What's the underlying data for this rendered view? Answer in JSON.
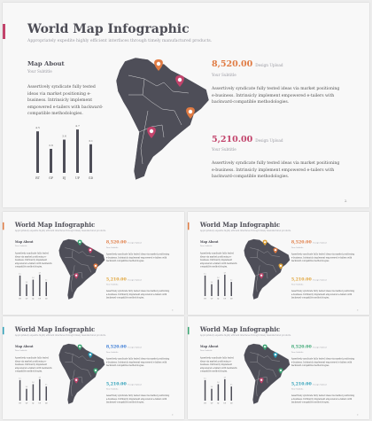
{
  "slide": {
    "title": "World Map Infographic",
    "subtitle": "Appropriately expedite highly efficient interfaces through timely manufactured products.",
    "section_title": "Map About",
    "section_sub": "Your Subtitle",
    "body": "Assertively syndicate fully tested ideas via market positioning e-business. Intrinsicly implement empowered e-tailers with backward-compatible methodologies.",
    "stat1": {
      "value": "8,520.00",
      "unit": "Design Upload",
      "sub": "Your Subtitle"
    },
    "stat2": {
      "value": "5,210.00",
      "unit": "Design Upload",
      "sub": "Your Subtitle"
    },
    "stat_text": "Assertively syndicate fully tested ideas via market positioning e-business. Intrinsicly implement empowered e-tailers with backward-compatible methodologies.",
    "page_number": "2"
  },
  "chart_data": {
    "type": "bar",
    "categories": [
      "RT",
      "GP",
      "EJ",
      "UP",
      "GD"
    ],
    "values": [
      4.5,
      2.6,
      3.6,
      4.7,
      3.1
    ],
    "labels": [
      "4.5",
      "2.6",
      "3.6",
      "4.7",
      "3.1"
    ],
    "ylim": [
      0,
      5
    ],
    "bar_color": "#4e4e58"
  },
  "themes": [
    {
      "accent": "#c2436b",
      "stat1": "#e07b43",
      "stat2": "#c2436b",
      "pins": [
        "#e07b43",
        "#c2436b",
        "#e07b43",
        "#c2436b"
      ]
    },
    {
      "accent": "#e07b43",
      "stat1": "#e07b43",
      "stat2": "#e0a43a",
      "pins": [
        "#3aa673",
        "#c2436b",
        "#e07b43",
        "#c2436b"
      ]
    },
    {
      "accent": "#e07b43",
      "stat1": "#e07b43",
      "stat2": "#e0a43a",
      "pins": [
        "#e0a43a",
        "#e07b43",
        "#e0a43a",
        "#c2436b"
      ]
    },
    {
      "accent": "#2c9fb8",
      "stat1": "#3a7bd5",
      "stat2": "#2c9fb8",
      "pins": [
        "#3aa673",
        "#2c9fb8",
        "#3aa673",
        "#c2436b"
      ]
    },
    {
      "accent": "#3aa673",
      "stat1": "#3aa673",
      "stat2": "#2c9fb8",
      "pins": [
        "#3aa673",
        "#2c9fb8",
        "#3aa673",
        "#c2436b"
      ]
    }
  ]
}
